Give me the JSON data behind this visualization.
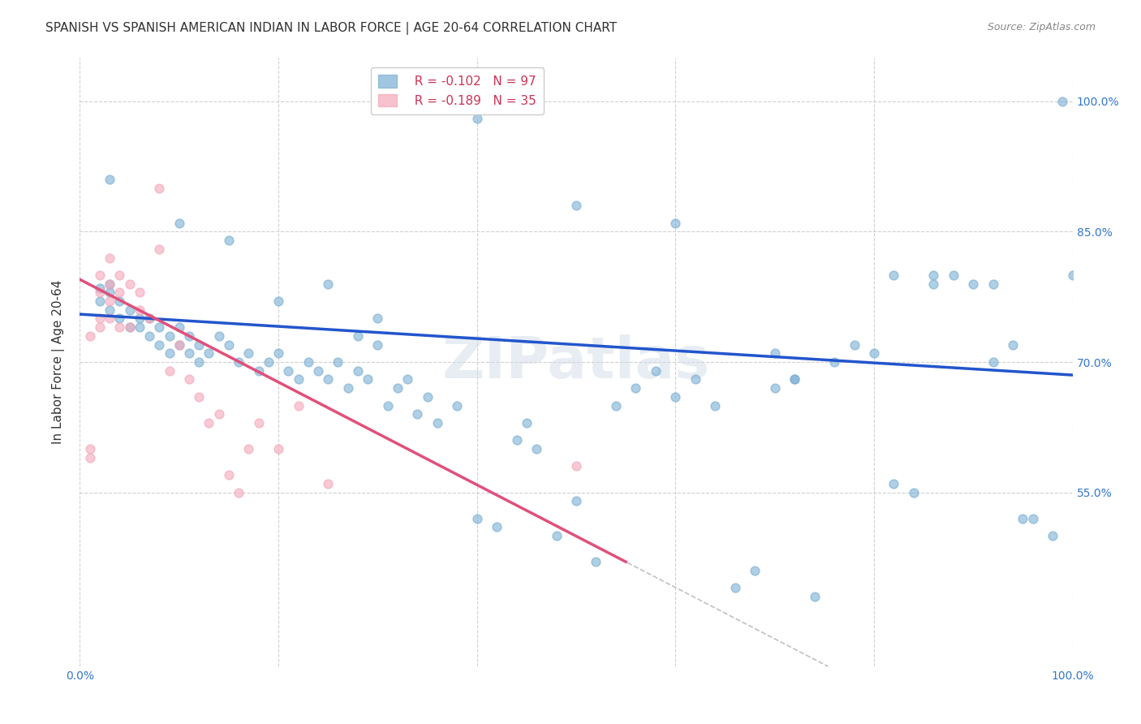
{
  "title": "SPANISH VS SPANISH AMERICAN INDIAN IN LABOR FORCE | AGE 20-64 CORRELATION CHART",
  "source": "Source: ZipAtlas.com",
  "xlabel": "",
  "ylabel": "In Labor Force | Age 20-64",
  "xlim": [
    0.0,
    1.0
  ],
  "ylim": [
    0.35,
    1.05
  ],
  "xticks": [
    0.0,
    0.2,
    0.4,
    0.6,
    0.8,
    1.0
  ],
  "xticklabels": [
    "0.0%",
    "",
    "",
    "",
    "",
    "100.0%"
  ],
  "ytick_positions": [
    0.55,
    0.7,
    0.85,
    1.0
  ],
  "ytick_labels": [
    "55.0%",
    "70.0%",
    "85.0%",
    "100.0%"
  ],
  "watermark": "ZIPatlas",
  "legend_r1": "R = -0.102",
  "legend_n1": "N = 97",
  "legend_r2": "R = -0.189",
  "legend_n2": "N = 35",
  "blue_color": "#7bafd4",
  "pink_color": "#f4a7b9",
  "trendline_blue": "#2255cc",
  "trendline_pink": "#e0507a",
  "trendline_dashed": "#c0c0c0",
  "blue_x": [
    0.02,
    0.02,
    0.03,
    0.03,
    0.03,
    0.04,
    0.04,
    0.05,
    0.05,
    0.06,
    0.06,
    0.07,
    0.07,
    0.08,
    0.08,
    0.09,
    0.09,
    0.1,
    0.1,
    0.11,
    0.11,
    0.12,
    0.12,
    0.13,
    0.14,
    0.15,
    0.16,
    0.17,
    0.18,
    0.19,
    0.2,
    0.21,
    0.22,
    0.23,
    0.24,
    0.25,
    0.26,
    0.27,
    0.28,
    0.29,
    0.3,
    0.31,
    0.32,
    0.33,
    0.34,
    0.35,
    0.36,
    0.38,
    0.4,
    0.42,
    0.44,
    0.45,
    0.46,
    0.48,
    0.5,
    0.52,
    0.54,
    0.56,
    0.58,
    0.6,
    0.62,
    0.64,
    0.66,
    0.68,
    0.7,
    0.72,
    0.74,
    0.76,
    0.78,
    0.8,
    0.82,
    0.84,
    0.86,
    0.88,
    0.9,
    0.92,
    0.94,
    0.96,
    0.98,
    1.0,
    0.03,
    0.1,
    0.15,
    0.2,
    0.25,
    0.3,
    0.4,
    0.5,
    0.6,
    0.7,
    0.72,
    0.82,
    0.86,
    0.92,
    0.95,
    0.99,
    0.28
  ],
  "blue_y": [
    0.785,
    0.77,
    0.79,
    0.76,
    0.78,
    0.75,
    0.77,
    0.74,
    0.76,
    0.75,
    0.74,
    0.73,
    0.75,
    0.74,
    0.72,
    0.73,
    0.71,
    0.72,
    0.74,
    0.73,
    0.71,
    0.72,
    0.7,
    0.71,
    0.73,
    0.72,
    0.7,
    0.71,
    0.69,
    0.7,
    0.71,
    0.69,
    0.68,
    0.7,
    0.69,
    0.68,
    0.7,
    0.67,
    0.69,
    0.68,
    0.72,
    0.65,
    0.67,
    0.68,
    0.64,
    0.66,
    0.63,
    0.65,
    0.52,
    0.51,
    0.61,
    0.63,
    0.6,
    0.5,
    0.54,
    0.47,
    0.65,
    0.67,
    0.69,
    0.66,
    0.68,
    0.65,
    0.44,
    0.46,
    0.67,
    0.68,
    0.43,
    0.7,
    0.72,
    0.71,
    0.56,
    0.55,
    0.79,
    0.8,
    0.79,
    0.7,
    0.72,
    0.52,
    0.5,
    0.8,
    0.91,
    0.86,
    0.84,
    0.77,
    0.79,
    0.75,
    0.98,
    0.88,
    0.86,
    0.71,
    0.68,
    0.8,
    0.8,
    0.79,
    0.52,
    1.0,
    0.73
  ],
  "pink_x": [
    0.01,
    0.01,
    0.01,
    0.02,
    0.02,
    0.02,
    0.02,
    0.03,
    0.03,
    0.03,
    0.03,
    0.04,
    0.04,
    0.04,
    0.05,
    0.05,
    0.06,
    0.06,
    0.07,
    0.08,
    0.08,
    0.09,
    0.1,
    0.11,
    0.12,
    0.13,
    0.14,
    0.15,
    0.16,
    0.17,
    0.18,
    0.2,
    0.22,
    0.25,
    0.5
  ],
  "pink_y": [
    0.59,
    0.6,
    0.73,
    0.74,
    0.75,
    0.78,
    0.8,
    0.75,
    0.77,
    0.79,
    0.82,
    0.74,
    0.78,
    0.8,
    0.74,
    0.79,
    0.76,
    0.78,
    0.75,
    0.9,
    0.83,
    0.69,
    0.72,
    0.68,
    0.66,
    0.63,
    0.64,
    0.57,
    0.55,
    0.6,
    0.63,
    0.6,
    0.65,
    0.56,
    0.58
  ],
  "blue_trend_x": [
    0.0,
    1.0
  ],
  "blue_trend_y": [
    0.755,
    0.685
  ],
  "pink_trend_x": [
    0.0,
    0.55
  ],
  "pink_trend_y": [
    0.795,
    0.47
  ],
  "grid_color": "#d0d0d0",
  "title_fontsize": 11,
  "axis_label_fontsize": 11,
  "tick_fontsize": 10,
  "scatter_size": 60,
  "scatter_alpha": 0.6,
  "scatter_linewidth": 1.2
}
